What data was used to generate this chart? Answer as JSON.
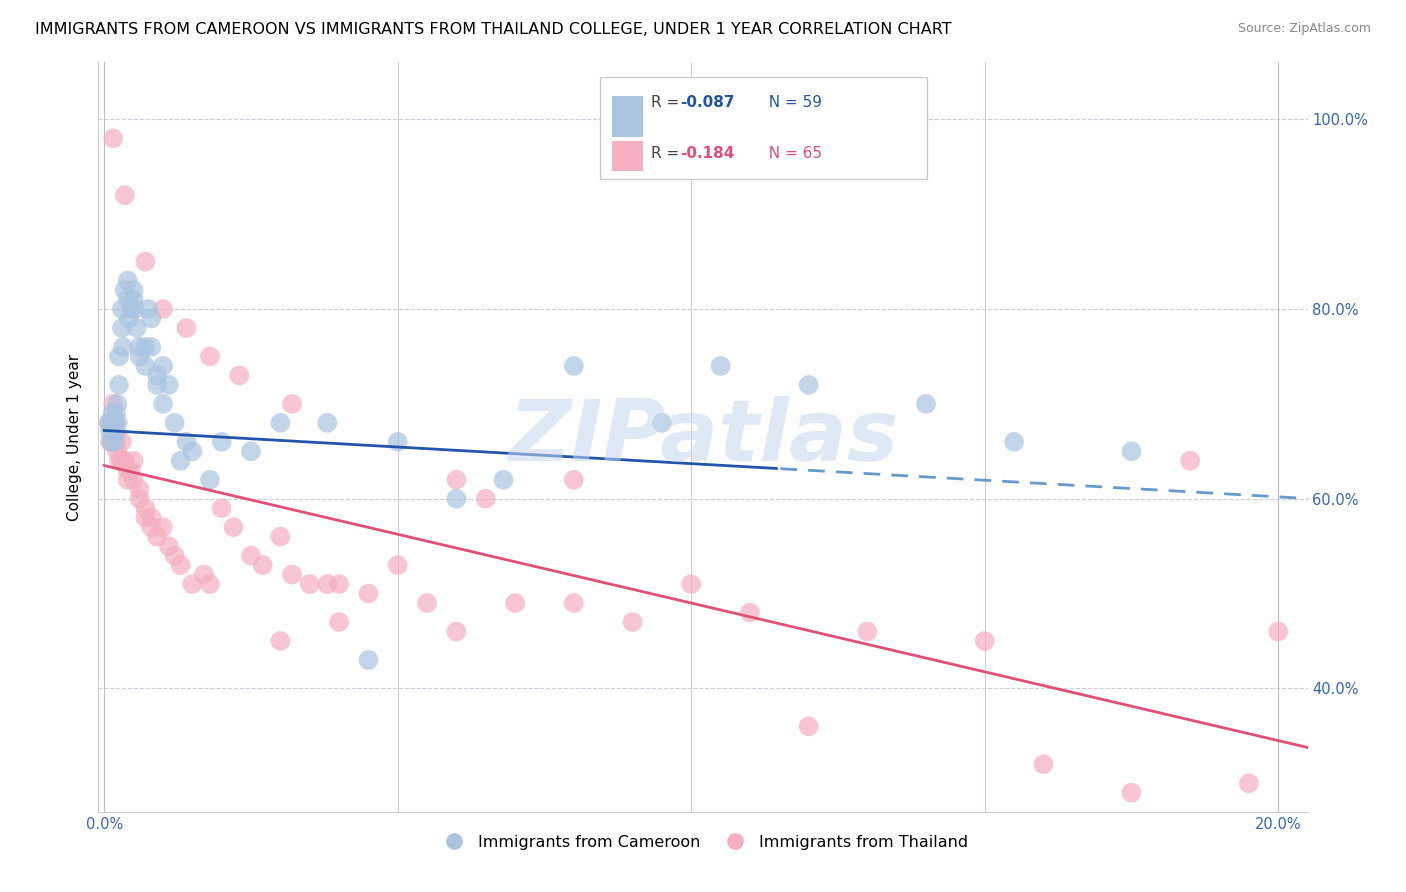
{
  "title": "IMMIGRANTS FROM CAMEROON VS IMMIGRANTS FROM THAILAND COLLEGE, UNDER 1 YEAR CORRELATION CHART",
  "source": "Source: ZipAtlas.com",
  "ylabel": "College, Under 1 year",
  "xlim": [
    -0.001,
    0.205
  ],
  "ylim": [
    0.27,
    1.06
  ],
  "xtick_pos": [
    0.0,
    0.05,
    0.1,
    0.15,
    0.2
  ],
  "xticklabels": [
    "0.0%",
    "",
    "",
    "",
    "20.0%"
  ],
  "ytick_pos": [
    0.4,
    0.6,
    0.8,
    1.0
  ],
  "yticklabels_right": [
    "40.0%",
    "60.0%",
    "80.0%",
    "100.0%"
  ],
  "legend_r1": "R = -0.087",
  "legend_n1": "N = 59",
  "legend_r2": "R = -0.184",
  "legend_n2": "N = 65",
  "blue_color": "#aac4e0",
  "pink_color": "#f4afc0",
  "line_blue_solid": "#2255aa",
  "line_blue_dash": "#6699cc",
  "line_pink": "#e05075",
  "watermark": "ZIPatlas",
  "title_fontsize": 11.5,
  "axis_label_fontsize": 11,
  "tick_fontsize": 10.5,
  "source_fontsize": 9,
  "blue_line_y0": 0.672,
  "blue_line_slope": -0.35,
  "blue_line_solid_end": 0.115,
  "pink_line_y0": 0.635,
  "pink_line_slope": -1.45,
  "cam_x": [
    0.0008,
    0.001,
    0.0012,
    0.0013,
    0.0014,
    0.0015,
    0.0016,
    0.0017,
    0.0018,
    0.002,
    0.002,
    0.0022,
    0.0023,
    0.0025,
    0.0025,
    0.003,
    0.003,
    0.0032,
    0.0035,
    0.004,
    0.004,
    0.0042,
    0.0045,
    0.005,
    0.005,
    0.0052,
    0.0055,
    0.006,
    0.006,
    0.007,
    0.007,
    0.0075,
    0.008,
    0.008,
    0.009,
    0.009,
    0.01,
    0.01,
    0.011,
    0.012,
    0.013,
    0.014,
    0.015,
    0.018,
    0.02,
    0.025,
    0.03,
    0.038,
    0.045,
    0.05,
    0.06,
    0.068,
    0.08,
    0.095,
    0.105,
    0.12,
    0.14,
    0.155,
    0.175
  ],
  "cam_y": [
    0.68,
    0.67,
    0.66,
    0.68,
    0.69,
    0.67,
    0.68,
    0.66,
    0.68,
    0.67,
    0.69,
    0.7,
    0.68,
    0.72,
    0.75,
    0.78,
    0.8,
    0.76,
    0.82,
    0.83,
    0.81,
    0.79,
    0.8,
    0.81,
    0.82,
    0.8,
    0.78,
    0.75,
    0.76,
    0.74,
    0.76,
    0.8,
    0.79,
    0.76,
    0.73,
    0.72,
    0.7,
    0.74,
    0.72,
    0.68,
    0.64,
    0.66,
    0.65,
    0.62,
    0.66,
    0.65,
    0.68,
    0.68,
    0.43,
    0.66,
    0.6,
    0.62,
    0.74,
    0.68,
    0.74,
    0.72,
    0.7,
    0.66,
    0.65
  ],
  "thai_x": [
    0.0008,
    0.001,
    0.0012,
    0.0013,
    0.0015,
    0.0015,
    0.0018,
    0.002,
    0.002,
    0.0022,
    0.0025,
    0.003,
    0.003,
    0.0032,
    0.0035,
    0.004,
    0.004,
    0.0045,
    0.005,
    0.005,
    0.006,
    0.006,
    0.007,
    0.007,
    0.008,
    0.008,
    0.009,
    0.01,
    0.011,
    0.012,
    0.013,
    0.015,
    0.017,
    0.018,
    0.02,
    0.022,
    0.025,
    0.027,
    0.03,
    0.032,
    0.035,
    0.038,
    0.04,
    0.045,
    0.05,
    0.055,
    0.06,
    0.065,
    0.07,
    0.08,
    0.09,
    0.1,
    0.11,
    0.12,
    0.13,
    0.15,
    0.16,
    0.175,
    0.185,
    0.195,
    0.2,
    0.04,
    0.06,
    0.08,
    0.03
  ],
  "thai_y": [
    0.68,
    0.66,
    0.68,
    0.66,
    0.68,
    0.7,
    0.68,
    0.67,
    0.66,
    0.65,
    0.64,
    0.64,
    0.66,
    0.64,
    0.64,
    0.63,
    0.62,
    0.63,
    0.62,
    0.64,
    0.61,
    0.6,
    0.59,
    0.58,
    0.57,
    0.58,
    0.56,
    0.57,
    0.55,
    0.54,
    0.53,
    0.51,
    0.52,
    0.51,
    0.59,
    0.57,
    0.54,
    0.53,
    0.56,
    0.52,
    0.51,
    0.51,
    0.51,
    0.5,
    0.53,
    0.49,
    0.62,
    0.6,
    0.49,
    0.62,
    0.47,
    0.51,
    0.48,
    0.36,
    0.46,
    0.45,
    0.32,
    0.29,
    0.64,
    0.3,
    0.46,
    0.47,
    0.46,
    0.49,
    0.45
  ],
  "thai_high_y": [
    0.98,
    0.92,
    0.85,
    0.8,
    0.78,
    0.75,
    0.73,
    0.7
  ],
  "thai_high_x": [
    0.0015,
    0.0035,
    0.007,
    0.01,
    0.014,
    0.018,
    0.023,
    0.032
  ]
}
